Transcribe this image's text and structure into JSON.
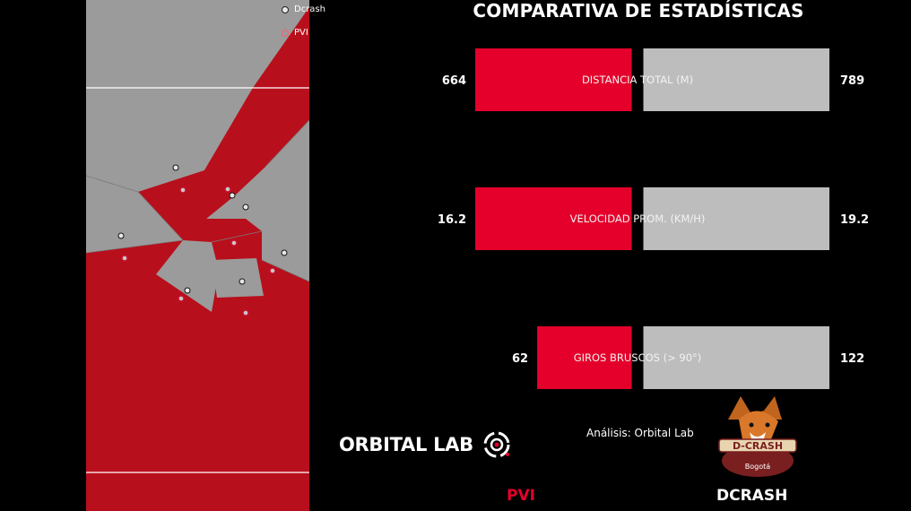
{
  "legend": {
    "items": [
      {
        "label": "Dcrash",
        "color": "#e8e8e8"
      },
      {
        "label": "PVI",
        "color": "#ff5c6c"
      }
    ]
  },
  "pitch": {
    "colors": {
      "dcrash_zone": "#9b9b9b",
      "pvi_zone": "#b80f1c",
      "lines": "#ffffff"
    }
  },
  "chart_data": {
    "type": "bar",
    "title": "COMPARATIVA DE ESTADÍSTICAS",
    "orientation": "horizontal-diverging",
    "categories": [
      "DISTANCIA TOTAL (M)",
      "VELOCIDAD PROM. (KM/H)",
      "GIROS BRUSCOS (> 90°)"
    ],
    "series": [
      {
        "name": "PVI",
        "color": "#e4002b",
        "values": [
          664,
          16.2,
          62
        ]
      },
      {
        "name": "DCRASH",
        "color": "#bdbdbd",
        "values": [
          789,
          19.2,
          122
        ]
      }
    ],
    "value_labels": {
      "left": [
        "664",
        "16.2",
        "62"
      ],
      "right": [
        "789",
        "19.2",
        "122"
      ]
    }
  },
  "footer": {
    "logo_text": "ORBITAL LAB",
    "credit": "Análisis: Orbital Lab",
    "team_left": "PVI",
    "team_right": "DCRASH",
    "crest_text": {
      "name": "D-CRASH",
      "sub": "Bogotá"
    }
  }
}
